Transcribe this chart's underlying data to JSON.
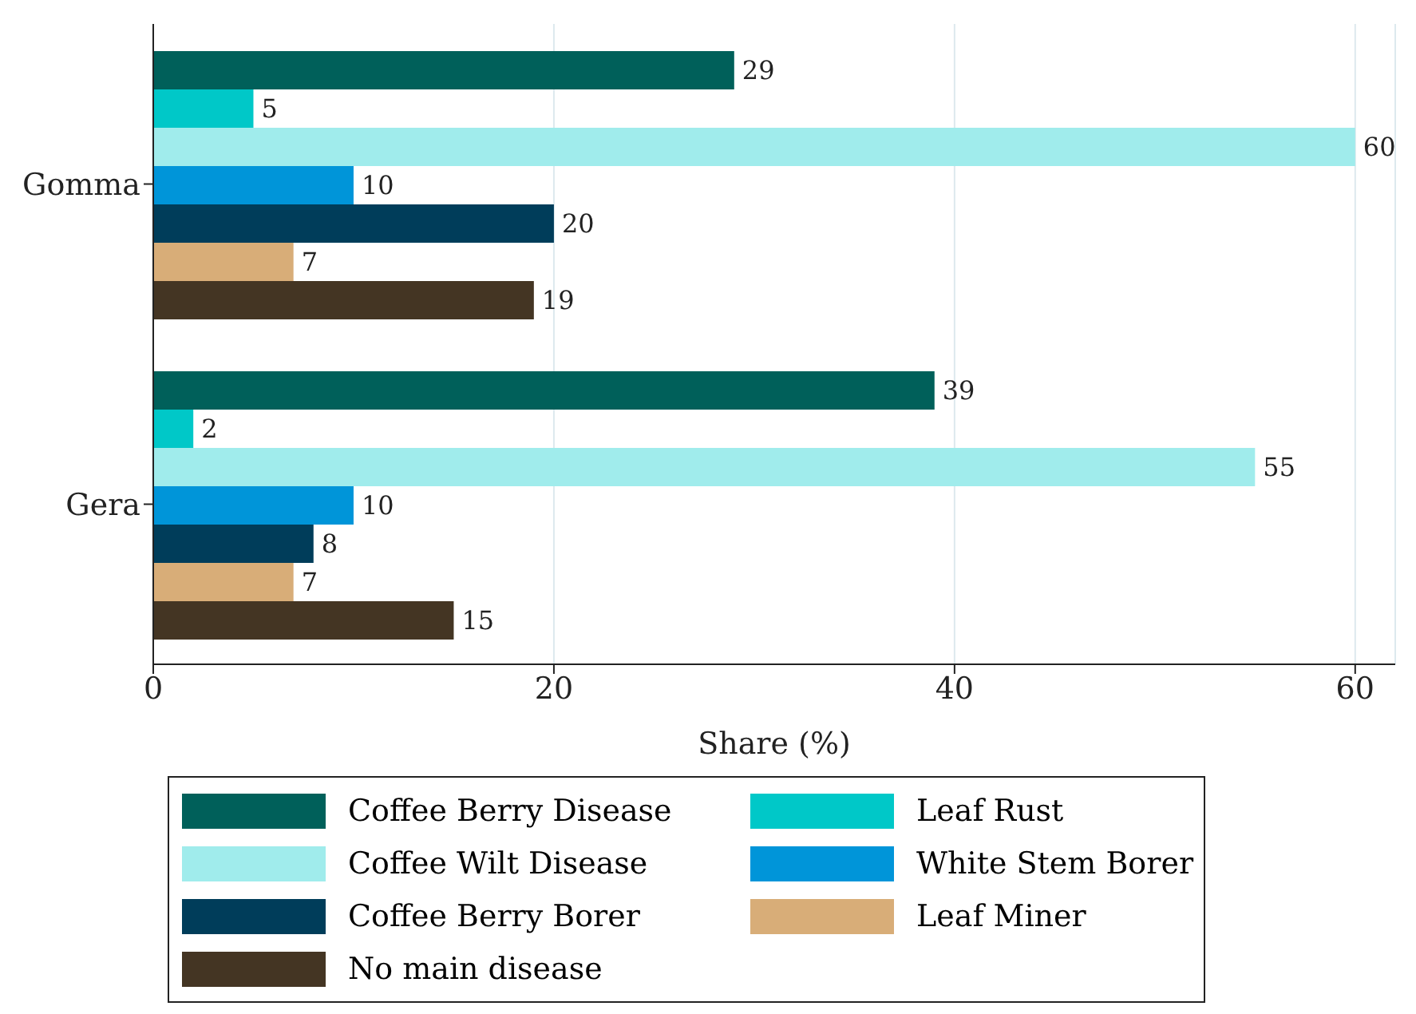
{
  "chart_data": {
    "type": "bar",
    "orientation": "horizontal",
    "xlabel": "Share (%)",
    "categories": [
      "Gomma",
      "Gera"
    ],
    "series": [
      {
        "name": "Coffee Berry Disease",
        "color": "#00605a",
        "values": [
          29,
          39
        ]
      },
      {
        "name": "Leaf Rust",
        "color": "#00c8c8",
        "values": [
          5,
          2
        ]
      },
      {
        "name": "Coffee Wilt Disease",
        "color": "#a0ecec",
        "values": [
          60,
          55
        ]
      },
      {
        "name": "White Stem Borer",
        "color": "#0095d9",
        "values": [
          10,
          10
        ]
      },
      {
        "name": "Coffee Berry Borer",
        "color": "#003d5a",
        "values": [
          20,
          8
        ]
      },
      {
        "name": "Leaf Miner",
        "color": "#d8ad78",
        "values": [
          7,
          7
        ]
      },
      {
        "name": "No main disease",
        "color": "#443523",
        "values": [
          19,
          15
        ]
      }
    ],
    "xlim": [
      0,
      62
    ],
    "xticks": [
      0,
      20,
      40,
      60
    ],
    "grid": "x",
    "legend": "bottom",
    "data_labels": true
  }
}
